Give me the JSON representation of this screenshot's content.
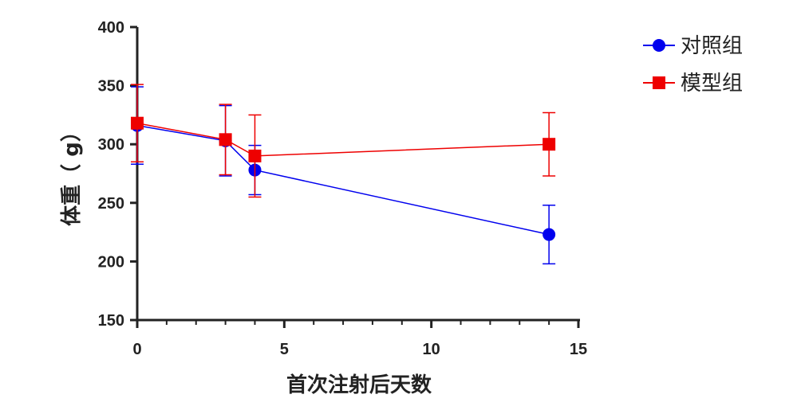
{
  "chart_data": {
    "type": "line",
    "xlabel": "首次注射后天数",
    "ylabel": "体重（ g）",
    "xlim": [
      0,
      15
    ],
    "ylim": [
      150,
      400
    ],
    "xticks": [
      0,
      5,
      10,
      15
    ],
    "yticks": [
      150,
      200,
      250,
      300,
      350,
      400
    ],
    "x_minor_step": 1,
    "grid": false,
    "legend": "top-right",
    "series": [
      {
        "name": "对照组",
        "color": "#0000ee",
        "marker": "circle",
        "x": [
          0,
          3,
          4,
          14
        ],
        "y": [
          316,
          303,
          278,
          223
        ],
        "error": [
          33,
          30,
          21,
          25
        ]
      },
      {
        "name": "模型组",
        "color": "#ee0000",
        "marker": "square",
        "x": [
          0,
          3,
          4,
          14
        ],
        "y": [
          318,
          304,
          290,
          300
        ],
        "error": [
          33,
          30,
          35,
          27
        ]
      }
    ]
  }
}
